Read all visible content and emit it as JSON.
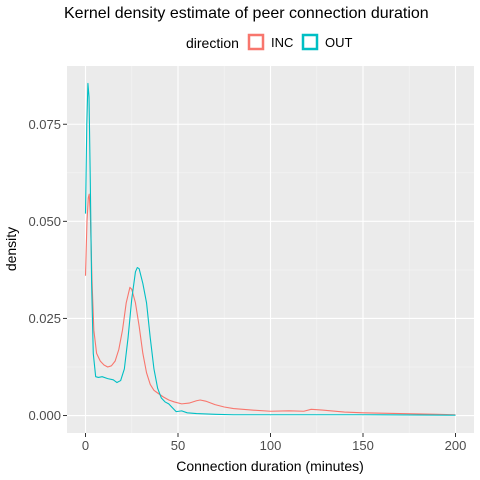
{
  "chart_data": {
    "type": "line",
    "title": "Kernel density estimate of peer connection duration",
    "xlabel": "Connection duration (minutes)",
    "ylabel": "density",
    "xlim": [
      -10,
      210
    ],
    "ylim": [
      -0.0045,
      0.09
    ],
    "x_ticks": [
      0,
      50,
      100,
      150,
      200
    ],
    "x_tick_labels": [
      "0",
      "50",
      "100",
      "150",
      "200"
    ],
    "y_ticks": [
      0,
      0.025,
      0.05,
      0.075
    ],
    "y_tick_labels": [
      "0.000",
      "0.025",
      "0.050",
      "0.075"
    ],
    "grid": true,
    "legend": {
      "title": "direction",
      "position": "top"
    },
    "series": [
      {
        "name": "INC",
        "color": "#F8766D",
        "points": [
          [
            0,
            0.036
          ],
          [
            0.8,
            0.05
          ],
          [
            1.5,
            0.056
          ],
          [
            2,
            0.057
          ],
          [
            2.6,
            0.052
          ],
          [
            3.5,
            0.035
          ],
          [
            4.5,
            0.022
          ],
          [
            6,
            0.016
          ],
          [
            8,
            0.014
          ],
          [
            10,
            0.013
          ],
          [
            12,
            0.0125
          ],
          [
            14,
            0.0128
          ],
          [
            16,
            0.014
          ],
          [
            18,
            0.017
          ],
          [
            20,
            0.022
          ],
          [
            22,
            0.029
          ],
          [
            24,
            0.033
          ],
          [
            25,
            0.0325
          ],
          [
            27,
            0.029
          ],
          [
            29,
            0.023
          ],
          [
            31,
            0.016
          ],
          [
            33,
            0.011
          ],
          [
            35,
            0.008
          ],
          [
            37,
            0.0065
          ],
          [
            39,
            0.0058
          ],
          [
            42,
            0.0048
          ],
          [
            45,
            0.004
          ],
          [
            48,
            0.0035
          ],
          [
            52,
            0.003
          ],
          [
            56,
            0.0032
          ],
          [
            60,
            0.0038
          ],
          [
            62,
            0.004
          ],
          [
            65,
            0.0037
          ],
          [
            70,
            0.0028
          ],
          [
            75,
            0.0022
          ],
          [
            80,
            0.0018
          ],
          [
            90,
            0.0014
          ],
          [
            100,
            0.0011
          ],
          [
            110,
            0.0012
          ],
          [
            118,
            0.0011
          ],
          [
            122,
            0.0016
          ],
          [
            128,
            0.0014
          ],
          [
            140,
            0.0009
          ],
          [
            150,
            0.0007
          ],
          [
            160,
            0.0006
          ],
          [
            170,
            0.0005
          ],
          [
            180,
            0.0004
          ],
          [
            190,
            0.0003
          ],
          [
            200,
            0.0002
          ]
        ]
      },
      {
        "name": "OUT",
        "color": "#00BFC4",
        "points": [
          [
            0,
            0.052
          ],
          [
            0.7,
            0.075
          ],
          [
            1.3,
            0.0855
          ],
          [
            1.9,
            0.082
          ],
          [
            2.6,
            0.06
          ],
          [
            3.3,
            0.034
          ],
          [
            4.2,
            0.016
          ],
          [
            5.5,
            0.01
          ],
          [
            7,
            0.0098
          ],
          [
            9,
            0.01
          ],
          [
            12,
            0.0095
          ],
          [
            15,
            0.0092
          ],
          [
            17,
            0.0085
          ],
          [
            19,
            0.009
          ],
          [
            21,
            0.012
          ],
          [
            23,
            0.02
          ],
          [
            25,
            0.03
          ],
          [
            27,
            0.037
          ],
          [
            28,
            0.0381
          ],
          [
            29,
            0.0378
          ],
          [
            31,
            0.034
          ],
          [
            33,
            0.029
          ],
          [
            35,
            0.02
          ],
          [
            37,
            0.012
          ],
          [
            39,
            0.007
          ],
          [
            41,
            0.0045
          ],
          [
            43,
            0.0035
          ],
          [
            45,
            0.003
          ],
          [
            47,
            0.002
          ],
          [
            49,
            0.001
          ],
          [
            52,
            0.0012
          ],
          [
            55,
            0.0007
          ],
          [
            60,
            0.0005
          ],
          [
            70,
            0.0003
          ],
          [
            80,
            0.0002
          ],
          [
            90,
            0.0002
          ],
          [
            100,
            0.0002
          ],
          [
            150,
            0.0002
          ],
          [
            200,
            0.0001
          ]
        ]
      }
    ]
  }
}
